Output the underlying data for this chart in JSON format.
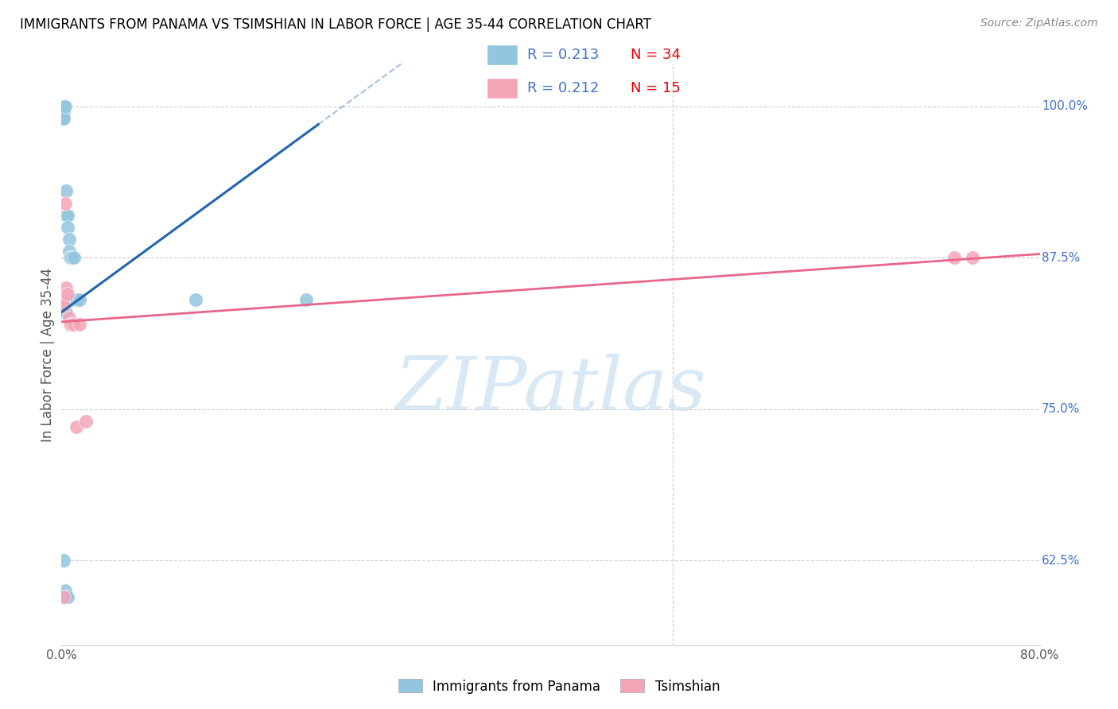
{
  "title": "IMMIGRANTS FROM PANAMA VS TSIMSHIAN IN LABOR FORCE | AGE 35-44 CORRELATION CHART",
  "source": "Source: ZipAtlas.com",
  "ylabel": "In Labor Force | Age 35-44",
  "xlim": [
    0.0,
    0.8
  ],
  "ylim": [
    0.555,
    1.035
  ],
  "xtick_vals": [
    0.0,
    0.1,
    0.2,
    0.3,
    0.4,
    0.5,
    0.6,
    0.7,
    0.8
  ],
  "xticklabels": [
    "0.0%",
    "",
    "",
    "",
    "",
    "",
    "",
    "",
    "80.0%"
  ],
  "ytick_right_vals": [
    0.625,
    0.75,
    0.875,
    1.0
  ],
  "ytick_right_labels": [
    "62.5%",
    "75.0%",
    "87.5%",
    "100.0%"
  ],
  "legend_r1": "R = 0.213",
  "legend_n1": "N = 34",
  "legend_r2": "R = 0.212",
  "legend_n2": "N = 15",
  "blue_color": "#92c5de",
  "pink_color": "#f4a6b8",
  "blue_line_color": "#2166ac",
  "pink_line_color": "#e8668a",
  "blue_scatter_x": [
    0.001,
    0.001,
    0.001,
    0.002,
    0.002,
    0.002,
    0.002,
    0.002,
    0.003,
    0.003,
    0.003,
    0.003,
    0.004,
    0.004,
    0.004,
    0.005,
    0.005,
    0.005,
    0.006,
    0.006,
    0.006,
    0.007,
    0.007,
    0.008,
    0.009,
    0.01,
    0.012,
    0.015,
    0.11,
    0.2,
    0.002,
    0.003,
    0.004,
    0.005
  ],
  "blue_scatter_y": [
    1.0,
    0.995,
    0.99,
    1.0,
    0.995,
    0.99,
    0.84,
    0.84,
    1.0,
    0.84,
    0.83,
    0.83,
    0.93,
    0.91,
    0.83,
    0.91,
    0.9,
    0.84,
    0.89,
    0.88,
    0.84,
    0.875,
    0.84,
    0.875,
    0.84,
    0.875,
    0.84,
    0.84,
    0.84,
    0.84,
    0.625,
    0.6,
    0.595,
    0.595
  ],
  "pink_scatter_x": [
    0.001,
    0.002,
    0.003,
    0.004,
    0.005,
    0.006,
    0.007,
    0.008,
    0.01,
    0.012,
    0.015,
    0.002,
    0.02,
    0.73,
    0.745
  ],
  "pink_scatter_y": [
    0.84,
    0.835,
    0.92,
    0.85,
    0.845,
    0.825,
    0.82,
    0.82,
    0.82,
    0.735,
    0.82,
    0.595,
    0.74,
    0.875,
    0.875
  ],
  "blue_line_x0": 0.0,
  "blue_line_y0": 0.83,
  "blue_line_x1": 0.21,
  "blue_line_y1": 0.985,
  "blue_line_solid_end": 0.21,
  "blue_line_x_end": 0.8,
  "pink_line_x0": 0.0,
  "pink_line_y0": 0.822,
  "pink_line_x1": 0.8,
  "pink_line_y1": 0.878,
  "watermark_text": "ZIPatlas",
  "watermark_color": "#c8dff0",
  "grid_color": "#cccccc",
  "right_axis_color": "#4472c4",
  "axis_label_color": "#555555",
  "legend_fontsize": 13,
  "title_fontsize": 12,
  "annotation_color": "#4472c4",
  "n_color": "#e8000a"
}
